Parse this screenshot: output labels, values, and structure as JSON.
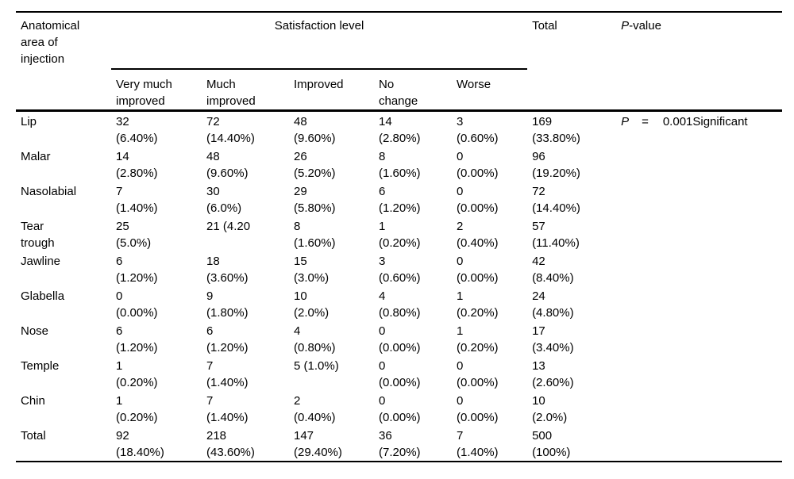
{
  "table": {
    "area_header_lines": [
      "Anatomical",
      "area of",
      "injection"
    ],
    "span_header": "Satisfaction level",
    "sub_headers": [
      [
        "Very much",
        "improved"
      ],
      [
        "Much",
        "improved"
      ],
      [
        "Improved",
        ""
      ],
      [
        "No",
        "change"
      ],
      [
        "Worse",
        ""
      ]
    ],
    "total_header": "Total",
    "pvalue_header": {
      "italic": "P",
      "rest": "-value"
    },
    "rows": [
      {
        "label_lines": [
          "Lip",
          ""
        ],
        "cells": [
          [
            "32",
            "(6.40%)"
          ],
          [
            "72",
            "(14.40%)"
          ],
          [
            "48",
            "(9.60%)"
          ],
          [
            "14",
            "(2.80%)"
          ],
          [
            "3",
            "(0.60%)"
          ],
          [
            "169",
            "(33.80%)"
          ]
        ],
        "pvalue": {
          "p": "P",
          "eq": "=",
          "val": "0.001Significant"
        }
      },
      {
        "label_lines": [
          "Malar",
          ""
        ],
        "cells": [
          [
            "14",
            "(2.80%)"
          ],
          [
            "48",
            "(9.60%)"
          ],
          [
            "26",
            "(5.20%)"
          ],
          [
            "8",
            "(1.60%)"
          ],
          [
            "0",
            "(0.00%)"
          ],
          [
            "96",
            "(19.20%)"
          ]
        ]
      },
      {
        "label_lines": [
          "Nasolabial",
          ""
        ],
        "cells": [
          [
            "7",
            "(1.40%)"
          ],
          [
            "30",
            "(6.0%)"
          ],
          [
            "29",
            "(5.80%)"
          ],
          [
            "6",
            "(1.20%)"
          ],
          [
            "0",
            "(0.00%)"
          ],
          [
            "72",
            "(14.40%)"
          ]
        ]
      },
      {
        "label_lines": [
          "Tear",
          "trough"
        ],
        "cells": [
          [
            "25",
            "(5.0%)"
          ],
          [
            "21 (4.20",
            ""
          ],
          [
            "8",
            "(1.60%)"
          ],
          [
            "1",
            "(0.20%)"
          ],
          [
            "2",
            "(0.40%)"
          ],
          [
            "57",
            "(11.40%)"
          ]
        ]
      },
      {
        "label_lines": [
          "Jawline",
          ""
        ],
        "cells": [
          [
            "6",
            "(1.20%)"
          ],
          [
            "18",
            "(3.60%)"
          ],
          [
            "15",
            "(3.0%)"
          ],
          [
            "3",
            "(0.60%)"
          ],
          [
            "0",
            "(0.00%)"
          ],
          [
            "42",
            "(8.40%)"
          ]
        ]
      },
      {
        "label_lines": [
          "Glabella",
          ""
        ],
        "cells": [
          [
            "0",
            "(0.00%)"
          ],
          [
            "9",
            "(1.80%)"
          ],
          [
            "10",
            "(2.0%)"
          ],
          [
            "4",
            "(0.80%)"
          ],
          [
            "1",
            "(0.20%)"
          ],
          [
            "24",
            "(4.80%)"
          ]
        ]
      },
      {
        "label_lines": [
          "Nose",
          ""
        ],
        "cells": [
          [
            "6",
            "(1.20%)"
          ],
          [
            "6",
            "(1.20%)"
          ],
          [
            "4",
            "(0.80%)"
          ],
          [
            "0",
            "(0.00%)"
          ],
          [
            "1",
            "(0.20%)"
          ],
          [
            "17",
            "(3.40%)"
          ]
        ]
      },
      {
        "label_lines": [
          "Temple",
          ""
        ],
        "cells": [
          [
            "1",
            "(0.20%)"
          ],
          [
            "7",
            "(1.40%)"
          ],
          [
            "5 (1.0%)",
            ""
          ],
          [
            "0",
            "(0.00%)"
          ],
          [
            "0",
            "(0.00%)"
          ],
          [
            "13",
            "(2.60%)"
          ]
        ]
      },
      {
        "label_lines": [
          "Chin",
          ""
        ],
        "cells": [
          [
            "1",
            "(0.20%)"
          ],
          [
            "7",
            "(1.40%)"
          ],
          [
            "2",
            "(0.40%)"
          ],
          [
            "0",
            "(0.00%)"
          ],
          [
            "0",
            "(0.00%)"
          ],
          [
            "10",
            "(2.0%)"
          ]
        ]
      },
      {
        "label_lines": [
          "Total",
          ""
        ],
        "cells": [
          [
            "92",
            "(18.40%)"
          ],
          [
            "218",
            "(43.60%)"
          ],
          [
            "147",
            "(29.40%)"
          ],
          [
            "36",
            "(7.20%)"
          ],
          [
            "7",
            "(1.40%)"
          ],
          [
            "500",
            "(100%)"
          ]
        ]
      }
    ],
    "colors": {
      "text": "#000000",
      "rule": "#000000",
      "background": "#ffffff"
    }
  }
}
